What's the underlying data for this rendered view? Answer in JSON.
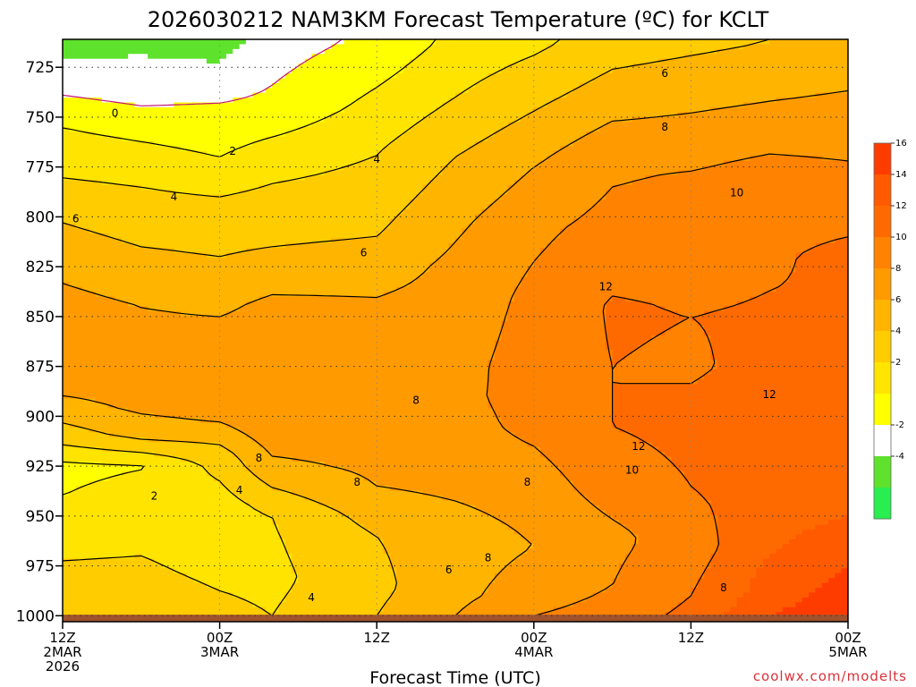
{
  "chart_data": {
    "type": "heatmap",
    "title": "2026030212 NAM3KM Forecast Temperature (ºC) for KCLT",
    "xlabel": "Forecast Time (UTC)",
    "ylabel": "",
    "y_axis": {
      "ticks": [
        725,
        750,
        775,
        800,
        825,
        850,
        875,
        900,
        925,
        950,
        975,
        1000
      ],
      "range": [
        1003,
        711
      ],
      "units": "hPa (pressure, decreasing upward)"
    },
    "x_axis": {
      "range_hours": [
        0,
        60
      ],
      "ticks": [
        {
          "hour": 0,
          "lines": [
            "12Z",
            "2MAR",
            "2026"
          ]
        },
        {
          "hour": 12,
          "lines": [
            "00Z",
            "3MAR"
          ]
        },
        {
          "hour": 24,
          "lines": [
            "12Z"
          ]
        },
        {
          "hour": 36,
          "lines": [
            "00Z",
            "4MAR"
          ]
        },
        {
          "hour": 48,
          "lines": [
            "12Z"
          ]
        },
        {
          "hour": 60,
          "lines": [
            "00Z",
            "5MAR"
          ]
        }
      ]
    },
    "grid": true,
    "colorbar": {
      "placement": "right",
      "ticks": [
        16,
        14,
        12,
        10,
        8,
        6,
        4,
        2,
        -2,
        -4
      ],
      "bands": [
        {
          "min": 16,
          "max": 18,
          "color": "#ff3c00"
        },
        {
          "min": 14,
          "max": 16,
          "color": "#ff5a00"
        },
        {
          "min": 12,
          "max": 14,
          "color": "#ff6a00"
        },
        {
          "min": 10,
          "max": 12,
          "color": "#ff8200"
        },
        {
          "min": 8,
          "max": 10,
          "color": "#ff9a00"
        },
        {
          "min": 6,
          "max": 8,
          "color": "#ffb400"
        },
        {
          "min": 4,
          "max": 6,
          "color": "#ffcc00"
        },
        {
          "min": 2,
          "max": 4,
          "color": "#ffe400"
        },
        {
          "min": 0,
          "max": 2,
          "color": "#ffff00"
        },
        {
          "min": -2,
          "max": 0,
          "color": "#ffffff"
        },
        {
          "min": -4,
          "max": -2,
          "color": "#5ee22c"
        },
        {
          "min": -6,
          "max": -4,
          "color": "#28ee50"
        }
      ]
    },
    "temperature_profiles": [
      {
        "hour": 0,
        "levels": [
          [
            712,
            -3
          ],
          [
            735,
            -0.5
          ],
          [
            755,
            2
          ],
          [
            775,
            3.5
          ],
          [
            800,
            5.8
          ],
          [
            825,
            7.5
          ],
          [
            850,
            9
          ],
          [
            875,
            9
          ],
          [
            890,
            8
          ],
          [
            910,
            5
          ],
          [
            925,
            1.5
          ],
          [
            940,
            2
          ],
          [
            960,
            3.5
          ],
          [
            985,
            4.5
          ],
          [
            1000,
            5
          ]
        ]
      },
      {
        "hour": 6,
        "levels": [
          [
            712,
            -2.5
          ],
          [
            740,
            -0.5
          ],
          [
            760,
            1.8
          ],
          [
            785,
            4
          ],
          [
            815,
            6
          ],
          [
            845,
            8
          ],
          [
            875,
            9
          ],
          [
            895,
            8.5
          ],
          [
            910,
            6.5
          ],
          [
            925,
            1.9
          ],
          [
            945,
            3
          ],
          [
            970,
            4
          ],
          [
            995,
            5
          ]
        ]
      },
      {
        "hour": 12,
        "levels": [
          [
            712,
            -3
          ],
          [
            745,
            0.2
          ],
          [
            770,
            2
          ],
          [
            795,
            4.5
          ],
          [
            820,
            6
          ],
          [
            850,
            8
          ],
          [
            880,
            9.5
          ],
          [
            900,
            8.5
          ],
          [
            920,
            5
          ],
          [
            945,
            3
          ],
          [
            975,
            3.5
          ],
          [
            1000,
            4.5
          ]
        ]
      },
      {
        "hour": 16,
        "levels": [
          [
            712,
            -1
          ],
          [
            745,
            0.5
          ],
          [
            770,
            3
          ],
          [
            790,
            4.5
          ],
          [
            815,
            6
          ],
          [
            845,
            8.5
          ],
          [
            880,
            9
          ],
          [
            905,
            9.5
          ],
          [
            925,
            7.5
          ],
          [
            950,
            4
          ],
          [
            980,
            3.5
          ],
          [
            1000,
            4
          ]
        ]
      },
      {
        "hour": 24,
        "levels": [
          [
            712,
            0.5
          ],
          [
            735,
            2
          ],
          [
            765,
            3.8
          ],
          [
            790,
            5
          ],
          [
            810,
            6
          ],
          [
            840,
            8
          ],
          [
            880,
            9
          ],
          [
            910,
            9
          ],
          [
            935,
            8
          ],
          [
            960,
            6
          ],
          [
            985,
            5.5
          ],
          [
            1000,
            6
          ]
        ]
      },
      {
        "hour": 30,
        "levels": [
          [
            712,
            2.5
          ],
          [
            740,
            4
          ],
          [
            770,
            6
          ],
          [
            800,
            7.5
          ],
          [
            825,
            8.5
          ],
          [
            860,
            9
          ],
          [
            890,
            9.5
          ],
          [
            925,
            9
          ],
          [
            960,
            7
          ],
          [
            990,
            7.5
          ],
          [
            1000,
            8
          ]
        ]
      },
      {
        "hour": 36,
        "levels": [
          [
            712,
            3.5
          ],
          [
            740,
            5.5
          ],
          [
            775,
            8
          ],
          [
            805,
            9.5
          ],
          [
            840,
            10.5
          ],
          [
            875,
            11
          ],
          [
            905,
            10.5
          ],
          [
            935,
            9
          ],
          [
            965,
            8
          ],
          [
            990,
            9
          ],
          [
            1000,
            10
          ]
        ]
      },
      {
        "hour": 42,
        "levels": [
          [
            712,
            5
          ],
          [
            740,
            7
          ],
          [
            770,
            9.5
          ],
          [
            800,
            10.5
          ],
          [
            845,
            12.2
          ],
          [
            875,
            12
          ],
          [
            905,
            12
          ],
          [
            935,
            11
          ],
          [
            960,
            9.5
          ],
          [
            985,
            10
          ],
          [
            1000,
            11
          ]
        ]
      },
      {
        "hour": 48,
        "levels": [
          [
            712,
            5.5
          ],
          [
            745,
            7.8
          ],
          [
            780,
            10.2
          ],
          [
            810,
            11
          ],
          [
            850,
            12
          ],
          [
            875,
            11.8
          ],
          [
            905,
            12.5
          ],
          [
            935,
            12
          ],
          [
            965,
            11
          ],
          [
            990,
            12
          ],
          [
            1000,
            12.5
          ]
        ]
      },
      {
        "hour": 54,
        "levels": [
          [
            712,
            6
          ],
          [
            745,
            8.2
          ],
          [
            775,
            10.5
          ],
          [
            805,
            11.5
          ],
          [
            850,
            12.2
          ],
          [
            880,
            12.5
          ],
          [
            910,
            13
          ],
          [
            945,
            13
          ],
          [
            970,
            14
          ],
          [
            990,
            15
          ],
          [
            1000,
            16
          ]
        ]
      },
      {
        "hour": 60,
        "levels": [
          [
            712,
            6.5
          ],
          [
            745,
            8.5
          ],
          [
            790,
            11
          ],
          [
            820,
            12.5
          ],
          [
            850,
            12
          ],
          [
            880,
            12.2
          ],
          [
            910,
            13
          ],
          [
            950,
            14
          ],
          [
            975,
            16
          ],
          [
            1000,
            17.5
          ]
        ]
      }
    ],
    "contour_levels": [
      0,
      2,
      4,
      6,
      8,
      10,
      12
    ],
    "contour_labels": [
      {
        "text": "0",
        "hour": 4.0,
        "p": 748
      },
      {
        "text": "2",
        "hour": 13.0,
        "p": 767
      },
      {
        "text": "4",
        "hour": 8.5,
        "p": 790
      },
      {
        "text": "4",
        "hour": 24.0,
        "p": 771
      },
      {
        "text": "6",
        "hour": 1.0,
        "p": 801
      },
      {
        "text": "6",
        "hour": 23.0,
        "p": 818
      },
      {
        "text": "6",
        "hour": 46.0,
        "p": 728
      },
      {
        "text": "8",
        "hour": 46.0,
        "p": 755
      },
      {
        "text": "10",
        "hour": 51.5,
        "p": 788
      },
      {
        "text": "12",
        "hour": 41.5,
        "p": 835
      },
      {
        "text": "12",
        "hour": 54.0,
        "p": 889
      },
      {
        "text": "12",
        "hour": 44.0,
        "p": 915
      },
      {
        "text": "10",
        "hour": 43.5,
        "p": 927
      },
      {
        "text": "8",
        "hour": 15.0,
        "p": 921
      },
      {
        "text": "8",
        "hour": 22.5,
        "p": 933
      },
      {
        "text": "8",
        "hour": 27.0,
        "p": 892
      },
      {
        "text": "8",
        "hour": 35.5,
        "p": 933
      },
      {
        "text": "8",
        "hour": 32.5,
        "p": 971
      },
      {
        "text": "8",
        "hour": 50.5,
        "p": 986
      },
      {
        "text": "4",
        "hour": 13.5,
        "p": 937
      },
      {
        "text": "2",
        "hour": 7.0,
        "p": 940
      },
      {
        "text": "6",
        "hour": 29.5,
        "p": 977
      },
      {
        "text": "4",
        "hour": 19.0,
        "p": 991
      }
    ]
  },
  "credit": "coolwx.com/modelts",
  "colors": {
    "ground": "#a0522d",
    "contour_line": "#000000",
    "freezing_line": "#c0157a",
    "grid": "#333333"
  }
}
